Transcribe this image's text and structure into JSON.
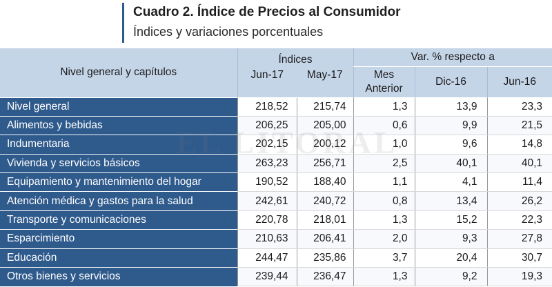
{
  "header": {
    "title": "Cuadro 2. Índice de Precios al Consumidor",
    "subtitle": "Índices y variaciones porcentuales"
  },
  "table": {
    "label_header": "Nivel general y capítulos",
    "indices_header": "Índices",
    "var_header": "Var. % respecto a",
    "sub_headers": {
      "jun17": "Jun-17",
      "may17": "May-17",
      "mes_anterior": "Mes\nAnterior",
      "dic16": "Dic-16",
      "jun16": "Jun-16"
    },
    "rows": [
      {
        "label": "Nivel general",
        "jun17": "218,52",
        "may17": "215,74",
        "mes": "1,3",
        "dic16": "13,9",
        "jun16": "23,3"
      },
      {
        "label": "Alimentos y bebidas",
        "jun17": "206,25",
        "may17": "205,00",
        "mes": "0,6",
        "dic16": "9,9",
        "jun16": "21,5"
      },
      {
        "label": "Indumentaria",
        "jun17": "202,15",
        "may17": "200,12",
        "mes": "1,0",
        "dic16": "9,6",
        "jun16": "14,8"
      },
      {
        "label": "Vivienda y servicios básicos",
        "jun17": "263,23",
        "may17": "256,71",
        "mes": "2,5",
        "dic16": "40,1",
        "jun16": "40,1"
      },
      {
        "label": "Equipamiento y mantenimiento del hogar",
        "jun17": "190,52",
        "may17": "188,40",
        "mes": "1,1",
        "dic16": "4,1",
        "jun16": "11,4"
      },
      {
        "label": "Atención médica y gastos para la salud",
        "jun17": "242,61",
        "may17": "240,72",
        "mes": "0,8",
        "dic16": "13,4",
        "jun16": "26,2"
      },
      {
        "label": "Transporte y comunicaciones",
        "jun17": "220,78",
        "may17": "218,01",
        "mes": "1,3",
        "dic16": "15,2",
        "jun16": "22,3"
      },
      {
        "label": "Esparcimiento",
        "jun17": "210,63",
        "may17": "206,41",
        "mes": "2,0",
        "dic16": "9,3",
        "jun16": "27,8"
      },
      {
        "label": "Educación",
        "jun17": "244,47",
        "may17": "235,86",
        "mes": "3,7",
        "dic16": "20,4",
        "jun16": "30,7"
      },
      {
        "label": "Otros bienes y servicios",
        "jun17": "239,44",
        "may17": "236,47",
        "mes": "1,3",
        "dic16": "9,2",
        "jun16": "19,3"
      }
    ]
  },
  "watermark": "EL LITORAL",
  "colors": {
    "row_label_bg": "#2f5a8c",
    "header_bg": "#c5d5e8",
    "accent_bar": "#2f5a8c"
  }
}
